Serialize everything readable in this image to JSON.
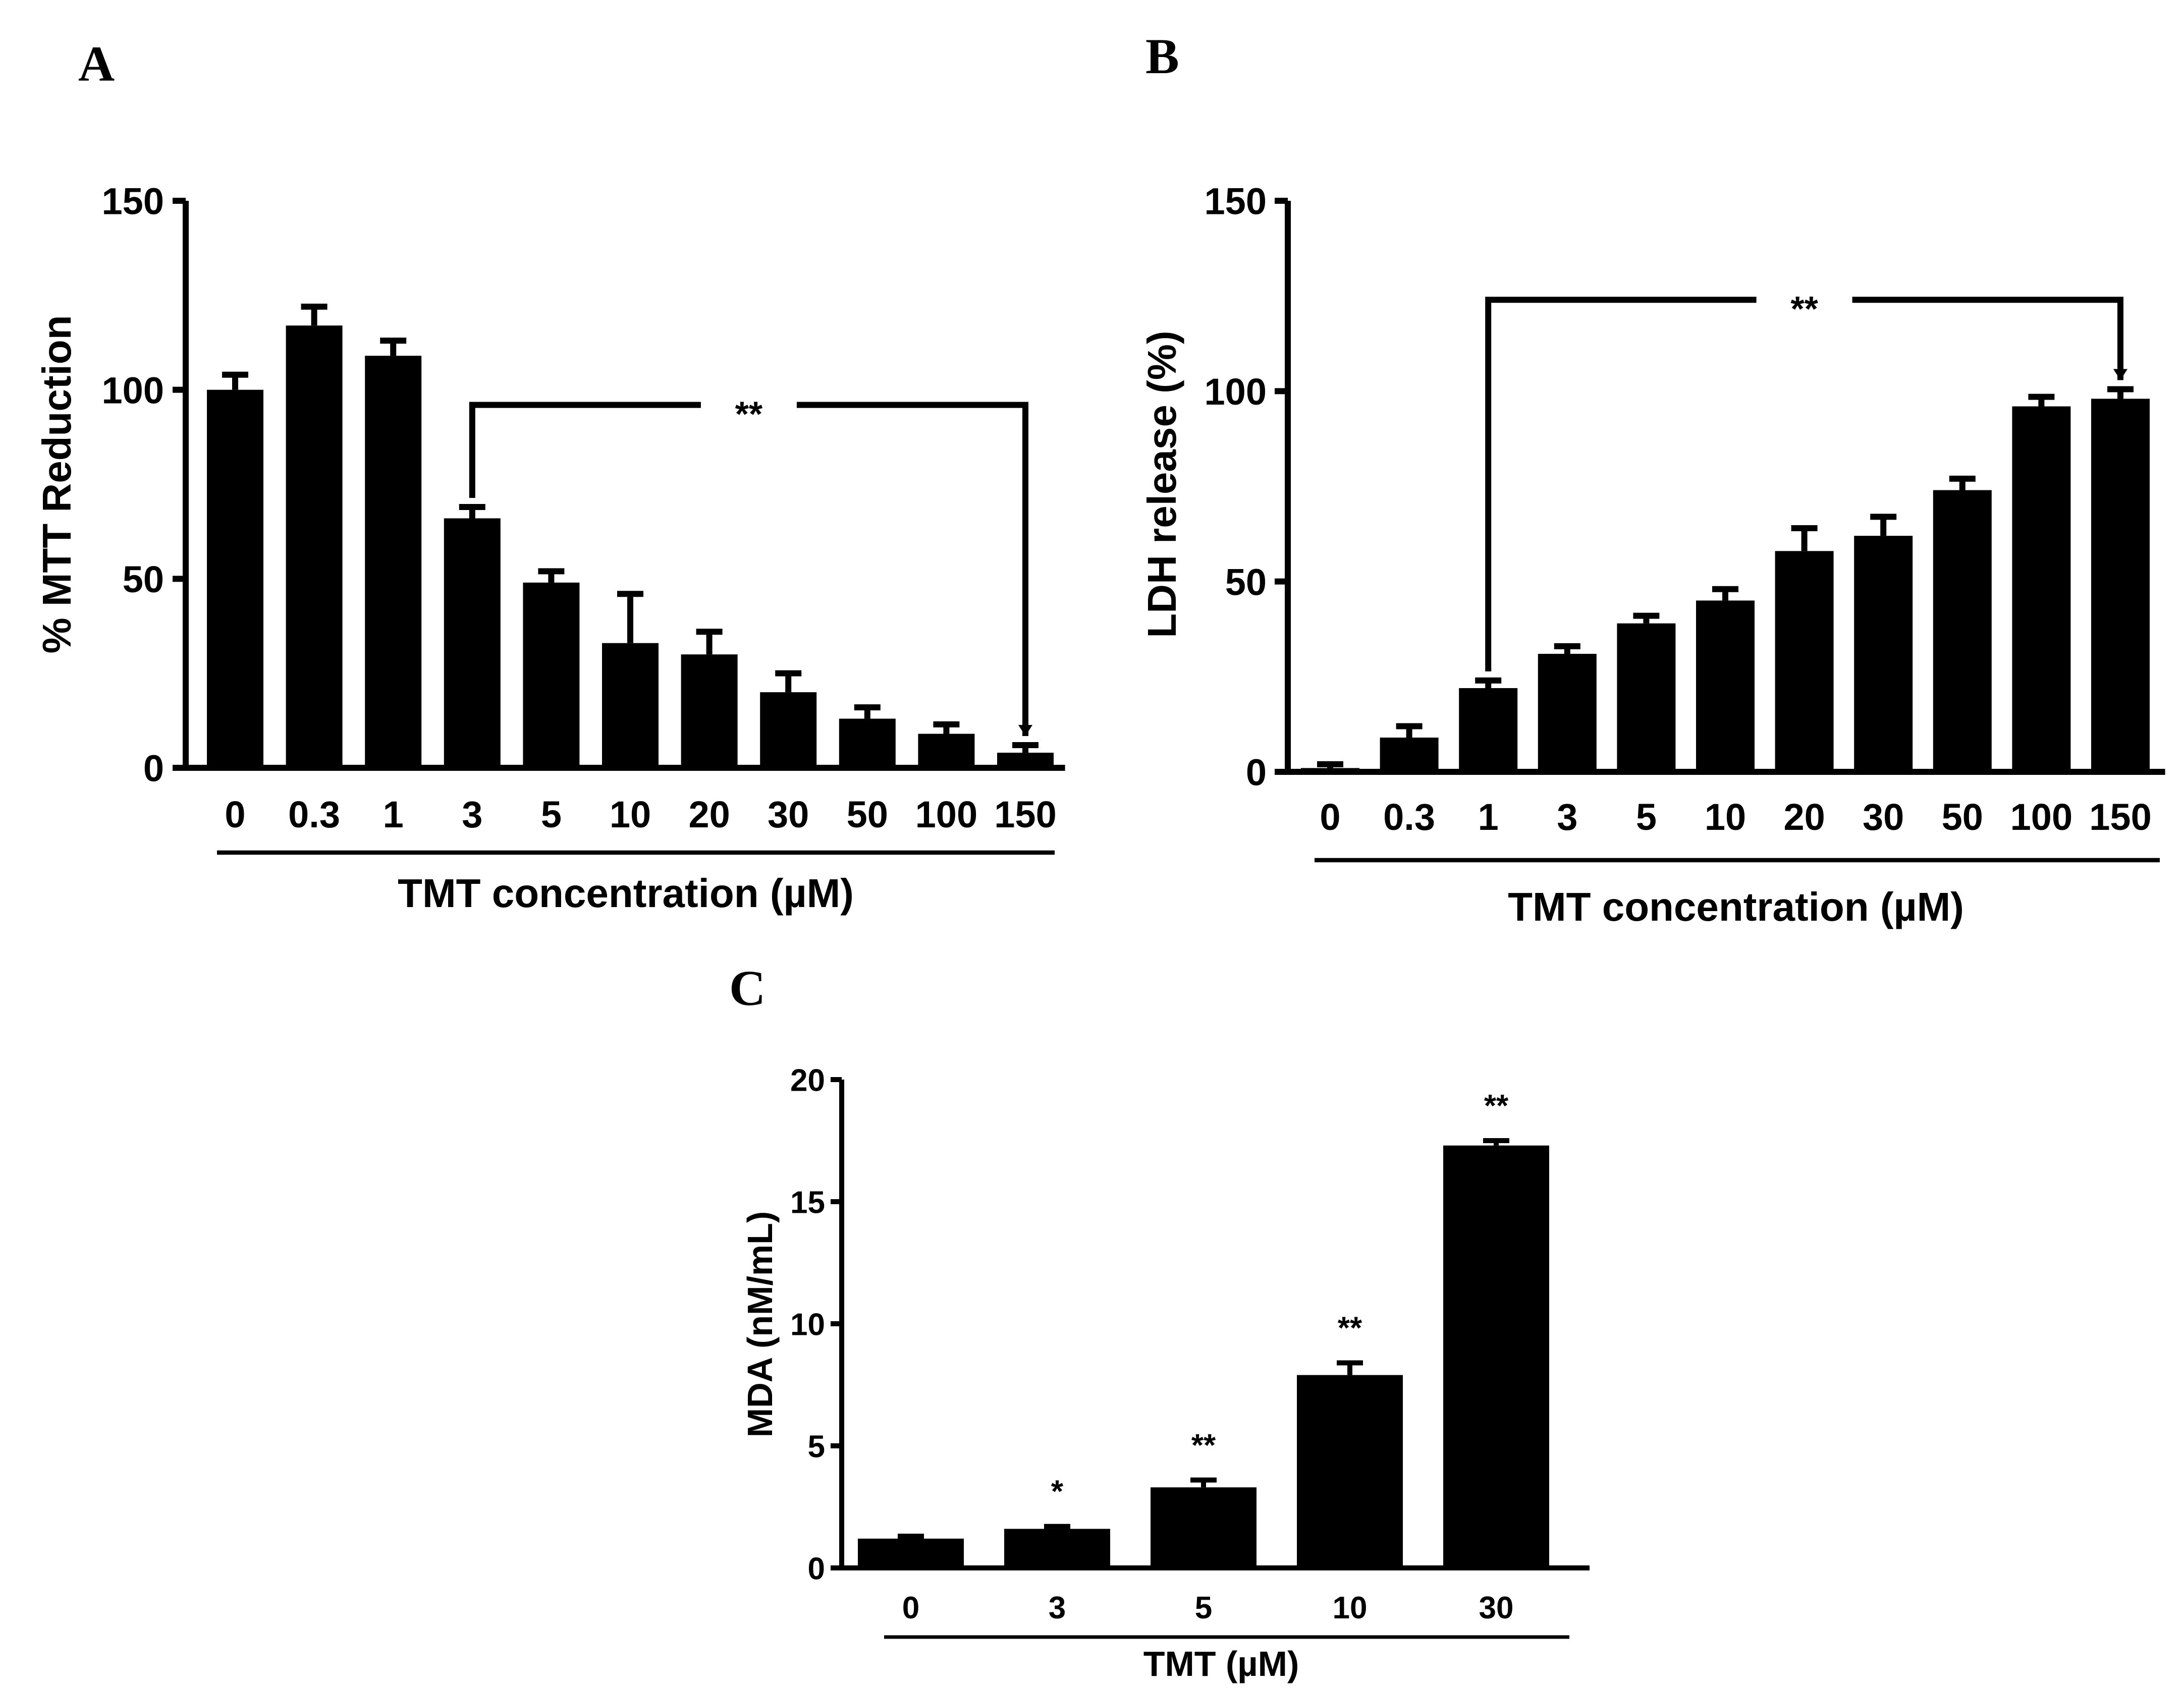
{
  "panels": [
    {
      "letter": "A"
    },
    {
      "letter": "B"
    },
    {
      "letter": "C"
    }
  ],
  "chart_data": [
    {
      "type": "bar",
      "panel": "A",
      "ylabel": "% MTT Reduction",
      "xlabel": "TMT concentration (µM)",
      "categories": [
        "0",
        "0.3",
        "1",
        "3",
        "5",
        "10",
        "20",
        "30",
        "50",
        "100",
        "150"
      ],
      "values": [
        100,
        117,
        109,
        66,
        49,
        33,
        30,
        20,
        13,
        9,
        4
      ],
      "errors": [
        4,
        5,
        4,
        3,
        3,
        13,
        6,
        5,
        3,
        2.5,
        2
      ],
      "ylim": [
        0,
        150
      ],
      "yticks": [
        0,
        50,
        100,
        150
      ],
      "significance": {
        "label": "**",
        "from": "3",
        "to": "150",
        "y": 96
      }
    },
    {
      "type": "bar",
      "panel": "B",
      "ylabel": "LDH release (%)",
      "xlabel": "TMT concentration (µM)",
      "categories": [
        "0",
        "0.3",
        "1",
        "3",
        "5",
        "10",
        "20",
        "30",
        "50",
        "100",
        "150"
      ],
      "values": [
        1,
        9,
        22,
        31,
        39,
        45,
        58,
        62,
        74,
        96,
        98
      ],
      "errors": [
        1,
        3,
        2,
        2,
        2,
        3,
        6,
        5,
        3,
        2.5,
        2.5
      ],
      "ylim": [
        0,
        150
      ],
      "yticks": [
        0,
        50,
        100,
        150
      ],
      "significance": {
        "label": "**",
        "from": "1",
        "to": "150",
        "y": 124
      }
    },
    {
      "type": "bar",
      "panel": "C",
      "ylabel": "MDA (nM/mL)",
      "xlabel": "TMT (µM)",
      "categories": [
        "0",
        "3",
        "5",
        "10",
        "30"
      ],
      "values": [
        1.2,
        1.6,
        3.3,
        7.9,
        17.3
      ],
      "errors": [
        0.1,
        0.1,
        0.3,
        0.5,
        0.2
      ],
      "ylim": [
        0,
        20
      ],
      "yticks": [
        0,
        5,
        10,
        15,
        20
      ],
      "bar_labels": [
        "",
        "*",
        "**",
        "**",
        "**"
      ]
    }
  ]
}
